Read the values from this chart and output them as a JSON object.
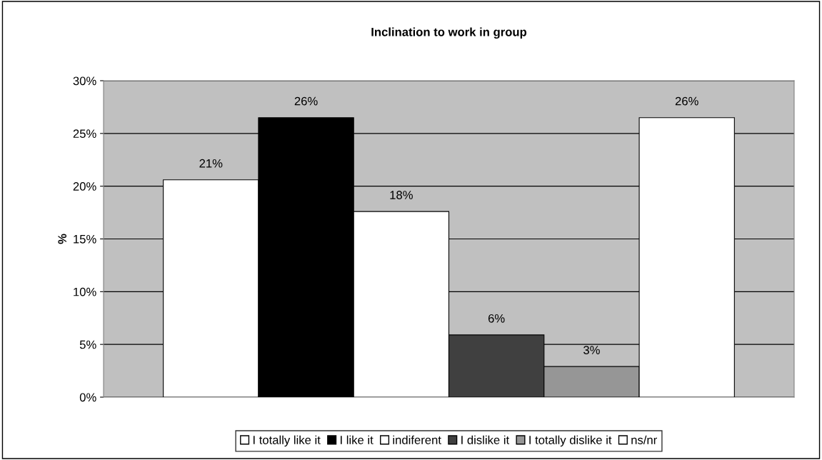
{
  "chart_data": {
    "type": "bar",
    "title": "Inclination to work in group",
    "ylabel": "%",
    "categories": [
      null
    ],
    "series": [
      {
        "name": "I totally like it",
        "color": "#ffffff",
        "values": [
          20.6
        ],
        "value_labels": [
          "21%"
        ]
      },
      {
        "name": "I like it",
        "color": "#000000",
        "values": [
          26.5
        ],
        "value_labels": [
          "26%"
        ]
      },
      {
        "name": "indiferent",
        "color": "#ffffff",
        "values": [
          17.6
        ],
        "value_labels": [
          "18%"
        ]
      },
      {
        "name": "I dislike it",
        "color": "#404040",
        "values": [
          5.9
        ],
        "value_labels": [
          "6%"
        ]
      },
      {
        "name": "I totally dislike it",
        "color": "#969696",
        "values": [
          2.9
        ],
        "value_labels": [
          "3%"
        ]
      },
      {
        "name": "ns/nr",
        "color": "#ffffff",
        "values": [
          26.5
        ],
        "value_labels": [
          "26%"
        ]
      }
    ],
    "ylim": [
      0,
      30
    ],
    "yticks": [
      {
        "value": 0,
        "label": "0%"
      },
      {
        "value": 5,
        "label": "5%"
      },
      {
        "value": 10,
        "label": "10%"
      },
      {
        "value": 15,
        "label": "15%"
      },
      {
        "value": 20,
        "label": "20%"
      },
      {
        "value": 25,
        "label": "25%"
      },
      {
        "value": 30,
        "label": "30%"
      }
    ],
    "grid": "y",
    "legend": "bottom"
  }
}
